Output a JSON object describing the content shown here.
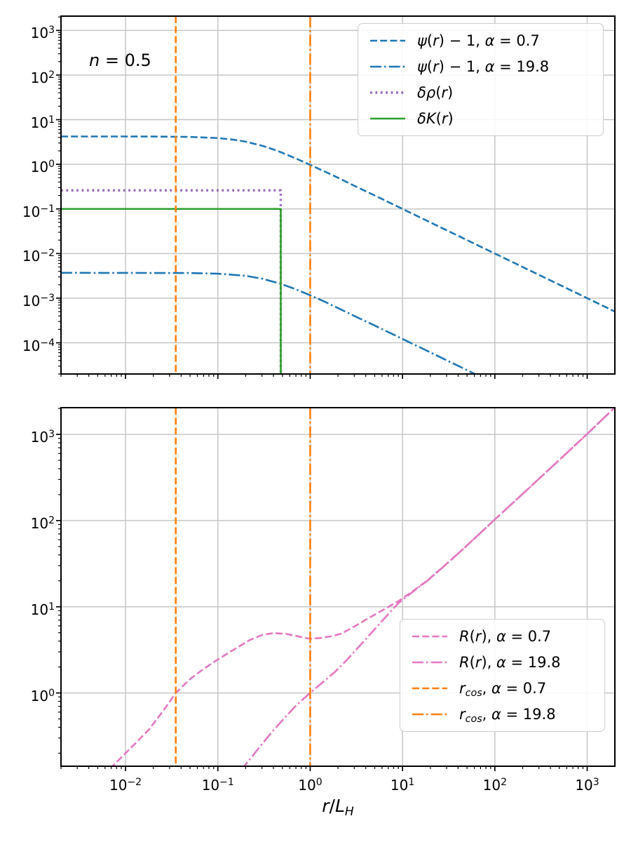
{
  "figure": {
    "background": "#ffffff",
    "annotation": {
      "var": "n",
      "rest": " = 0.5"
    },
    "x_axis_label_parts": [
      {
        "t": "r",
        "i": true
      },
      {
        "t": "/",
        "i": false
      },
      {
        "t": "L",
        "i": true
      },
      {
        "t": "H",
        "i": true,
        "sub": true
      }
    ]
  },
  "colors": {
    "blue": "#1f77b4",
    "purple": "#9467bd",
    "green": "#2ca02c",
    "orange": "#ff7f0e",
    "pink": "#e377c2",
    "grid": "#c6c6c6",
    "axis": "#000000"
  },
  "chart_data": [
    {
      "panel": "top",
      "type": "line",
      "xscale": "log",
      "yscale": "log",
      "xlim": [
        0.002,
        1995
      ],
      "ylim": [
        2e-05,
        2089
      ],
      "grid": true,
      "x_tick_exponents": [
        -2,
        -1,
        0,
        1,
        2,
        3
      ],
      "y_tick_exponents": [
        3,
        2,
        1,
        0,
        -1,
        -2,
        -3,
        -4
      ],
      "x_tick_labels_visible": false,
      "series": [
        {
          "name": "psi(r)-1, alpha=0.7",
          "color": "#1f77b4",
          "style": "dashed",
          "points": [
            [
              0.002,
              4.2
            ],
            [
              0.01,
              4.2
            ],
            [
              0.02,
              4.185
            ],
            [
              0.05,
              4.11
            ],
            [
              0.1,
              3.87
            ],
            [
              0.15,
              3.55
            ],
            [
              0.2,
              3.22
            ],
            [
              0.3,
              2.61
            ],
            [
              0.4,
              2.15
            ],
            [
              0.48,
              1.87
            ],
            [
              0.7,
              1.35
            ],
            [
              1,
              0.97
            ],
            [
              1.5,
              0.66
            ],
            [
              2,
              0.5
            ],
            [
              3,
              0.33
            ],
            [
              5,
              0.2
            ],
            [
              10,
              0.1
            ],
            [
              20,
              0.05
            ],
            [
              50,
              0.02
            ],
            [
              100,
              0.01
            ],
            [
              200,
              0.005
            ],
            [
              500,
              0.002
            ],
            [
              1000,
              0.001
            ],
            [
              2000,
              0.0005
            ]
          ]
        },
        {
          "name": "psi(r)-1, alpha=19.8",
          "color": "#1f77b4",
          "style": "dashdot",
          "points": [
            [
              0.002,
              0.0037
            ],
            [
              0.05,
              0.00366
            ],
            [
              0.1,
              0.00354
            ],
            [
              0.2,
              0.00317
            ],
            [
              0.3,
              0.00274
            ],
            [
              0.48,
              0.0021
            ],
            [
              0.7,
              0.00158
            ],
            [
              1,
              0.00116
            ],
            [
              1.5,
              0.0008
            ],
            [
              2,
              0.0006
            ],
            [
              3,
              0.0004
            ],
            [
              5,
              0.000244
            ],
            [
              10,
              0.000122
            ],
            [
              20,
              6.1e-05
            ],
            [
              40,
              3.05e-05
            ],
            [
              60,
              2.03e-05
            ],
            [
              90,
              1.36e-05
            ]
          ]
        },
        {
          "name": "delta rho(r)",
          "color": "#9467bd",
          "style": "dotted",
          "points": [
            [
              0.002,
              0.26
            ],
            [
              0.48,
              0.26
            ],
            [
              0.48,
              1.2e-05
            ]
          ]
        },
        {
          "name": "delta K(r)",
          "color": "#2ca02c",
          "style": "solid",
          "points": [
            [
              0.002,
              0.1
            ],
            [
              0.48,
              0.1
            ],
            [
              0.48,
              1.2e-05
            ]
          ]
        }
      ],
      "vlines": [
        {
          "name": "r_cos alpha=0.7",
          "value": 0.035,
          "color": "#ff7f0e",
          "style": "dashed"
        },
        {
          "name": "r_cos alpha=19.8",
          "value": 1.0,
          "color": "#ff7f0e",
          "style": "dashdot"
        }
      ],
      "legend": [
        {
          "color": "#1f77b4",
          "style": "dashed",
          "parts": [
            {
              "t": "ψ",
              "i": true
            },
            {
              "t": "(",
              "i": false
            },
            {
              "t": "r",
              "i": true
            },
            {
              "t": ") − 1,  ",
              "i": false
            },
            {
              "t": "α",
              "i": true
            },
            {
              "t": " = 0.7",
              "i": false
            }
          ]
        },
        {
          "color": "#1f77b4",
          "style": "dashdot",
          "parts": [
            {
              "t": "ψ",
              "i": true
            },
            {
              "t": "(",
              "i": false
            },
            {
              "t": "r",
              "i": true
            },
            {
              "t": ") − 1,  ",
              "i": false
            },
            {
              "t": "α",
              "i": true
            },
            {
              "t": " = 19.8",
              "i": false
            }
          ]
        },
        {
          "color": "#9467bd",
          "style": "dotted",
          "parts": [
            {
              "t": "δρ",
              "i": true
            },
            {
              "t": "(",
              "i": false
            },
            {
              "t": "r",
              "i": true
            },
            {
              "t": ")",
              "i": false
            }
          ]
        },
        {
          "color": "#2ca02c",
          "style": "solid",
          "parts": [
            {
              "t": "δK",
              "i": true
            },
            {
              "t": "(",
              "i": false
            },
            {
              "t": "r",
              "i": true
            },
            {
              "t": ")",
              "i": false
            }
          ]
        }
      ]
    },
    {
      "panel": "bottom",
      "type": "line",
      "xscale": "log",
      "yscale": "log",
      "xlim": [
        0.002,
        1995
      ],
      "ylim": [
        0.1413,
        2042
      ],
      "grid": true,
      "x_tick_exponents": [
        -2,
        -1,
        0,
        1,
        2,
        3
      ],
      "y_tick_exponents": [
        3,
        2,
        1,
        0
      ],
      "x_tick_labels_visible": true,
      "series": [
        {
          "name": "R(r), alpha=0.7",
          "color": "#e377c2",
          "style": "dashed",
          "points": [
            [
              0.004,
              0.075
            ],
            [
              0.0073,
              0.143
            ],
            [
              0.012,
              0.243
            ],
            [
              0.0178,
              0.373
            ],
            [
              0.025,
              0.6
            ],
            [
              0.035,
              1.0
            ],
            [
              0.05,
              1.45
            ],
            [
              0.07,
              1.9
            ],
            [
              0.1,
              2.45
            ],
            [
              0.15,
              3.2
            ],
            [
              0.22,
              4.1
            ],
            [
              0.3,
              4.7
            ],
            [
              0.4,
              4.95
            ],
            [
              0.55,
              4.85
            ],
            [
              0.7,
              4.6
            ],
            [
              0.85,
              4.4
            ],
            [
              1,
              4.25
            ],
            [
              1.3,
              4.35
            ],
            [
              1.7,
              4.55
            ],
            [
              2.2,
              4.9
            ],
            [
              3,
              5.9
            ],
            [
              4.5,
              7.6
            ],
            [
              6.5,
              9.5
            ],
            [
              9,
              11.6
            ],
            [
              13,
              15.2
            ],
            [
              19,
              20.6
            ],
            [
              30,
              31.5
            ],
            [
              50,
              51.5
            ],
            [
              100,
              103
            ],
            [
              200,
              204
            ],
            [
              500,
              506
            ],
            [
              1000,
              1012
            ],
            [
              2000,
              2060
            ]
          ]
        },
        {
          "name": "R(r), alpha=19.8",
          "color": "#e377c2",
          "style": "dashdot",
          "points": [
            [
              0.13,
              0.085
            ],
            [
              0.195,
              0.143
            ],
            [
              0.28,
              0.232
            ],
            [
              0.4,
              0.37
            ],
            [
              0.55,
              0.54
            ],
            [
              0.7,
              0.71
            ],
            [
              0.85,
              0.86
            ],
            [
              1,
              1.0
            ],
            [
              1.4,
              1.36
            ],
            [
              1.88,
              1.78
            ],
            [
              2.5,
              2.42
            ],
            [
              3.5,
              3.6
            ],
            [
              5,
              5.5
            ],
            [
              7,
              8.2
            ],
            [
              9,
              11.0
            ],
            [
              13,
              15.0
            ],
            [
              19,
              20.4
            ],
            [
              30,
              31.4
            ],
            [
              50,
              51.5
            ],
            [
              100,
              103
            ],
            [
              200,
              204
            ],
            [
              500,
              506
            ],
            [
              1000,
              1012
            ],
            [
              2000,
              2060
            ]
          ]
        }
      ],
      "vlines": [
        {
          "name": "r_cos alpha=0.7",
          "value": 0.035,
          "color": "#ff7f0e",
          "style": "dashed"
        },
        {
          "name": "r_cos alpha=19.8",
          "value": 1.0,
          "color": "#ff7f0e",
          "style": "dashdot"
        }
      ],
      "legend": [
        {
          "color": "#e377c2",
          "style": "dashed",
          "parts": [
            {
              "t": "R",
              "i": true
            },
            {
              "t": "(",
              "i": false
            },
            {
              "t": "r",
              "i": true
            },
            {
              "t": "), ",
              "i": false
            },
            {
              "t": "α",
              "i": true
            },
            {
              "t": " = 0.7",
              "i": false
            }
          ]
        },
        {
          "color": "#e377c2",
          "style": "dashdot",
          "parts": [
            {
              "t": "R",
              "i": true
            },
            {
              "t": "(",
              "i": false
            },
            {
              "t": "r",
              "i": true
            },
            {
              "t": "), ",
              "i": false
            },
            {
              "t": "α",
              "i": true
            },
            {
              "t": " = 19.8",
              "i": false
            }
          ]
        },
        {
          "color": "#ff7f0e",
          "style": "dashed",
          "parts": [
            {
              "t": "r",
              "i": true
            },
            {
              "t": "cos",
              "i": true,
              "sub": true
            },
            {
              "t": ", ",
              "i": false
            },
            {
              "t": "α",
              "i": true
            },
            {
              "t": " = 0.7",
              "i": false
            }
          ]
        },
        {
          "color": "#ff7f0e",
          "style": "dashdot",
          "parts": [
            {
              "t": "r",
              "i": true
            },
            {
              "t": "cos",
              "i": true,
              "sub": true
            },
            {
              "t": ", ",
              "i": false
            },
            {
              "t": "α",
              "i": true
            },
            {
              "t": " = 19.8",
              "i": false
            }
          ]
        }
      ]
    }
  ]
}
